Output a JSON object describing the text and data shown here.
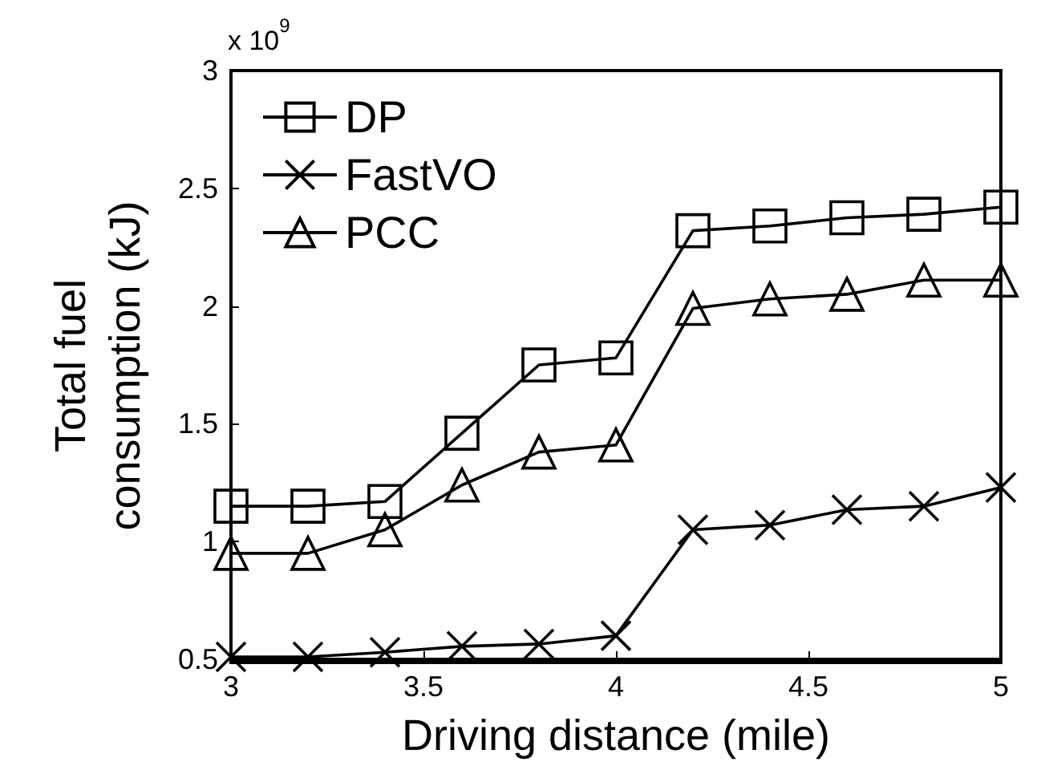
{
  "chart_data": {
    "type": "line",
    "xlabel": "Driving distance (mile)",
    "ylabel": "Total fuel consumption (kJ)",
    "annotations": [
      "x 10$^{9}$"
    ],
    "x": [
      3,
      3.2,
      3.4,
      3.6,
      3.8,
      4,
      4.2,
      4.4,
      4.6,
      4.8,
      5
    ],
    "series": [
      {
        "name": "DP",
        "color": "#000000",
        "marker": "square",
        "values": [
          1.15,
          1.15,
          1.17,
          1.46,
          1.75,
          1.78,
          2.32,
          2.34,
          2.375,
          2.39,
          2.42
        ]
      },
      {
        "name": "FastVO",
        "color": "#000000",
        "marker": "cross",
        "values": [
          0.51,
          0.51,
          0.53,
          0.555,
          0.565,
          0.6,
          1.05,
          1.07,
          1.135,
          1.15,
          1.23
        ]
      },
      {
        "name": "PCC",
        "color": "#000000",
        "marker": "triangle",
        "values": [
          0.95,
          0.95,
          1.05,
          1.24,
          1.38,
          1.41,
          1.99,
          2.03,
          2.05,
          2.11,
          2.11
        ]
      }
    ],
    "xlim": [
      3,
      5
    ],
    "xticks": [
      3,
      3.5,
      4,
      4.5,
      5
    ],
    "ylim": [
      0.5,
      3
    ],
    "yticks": [
      0.5,
      1,
      1.5,
      2,
      2.5,
      3
    ],
    "legend": "top left",
    "grid": false,
    "line_style": "solid"
  }
}
